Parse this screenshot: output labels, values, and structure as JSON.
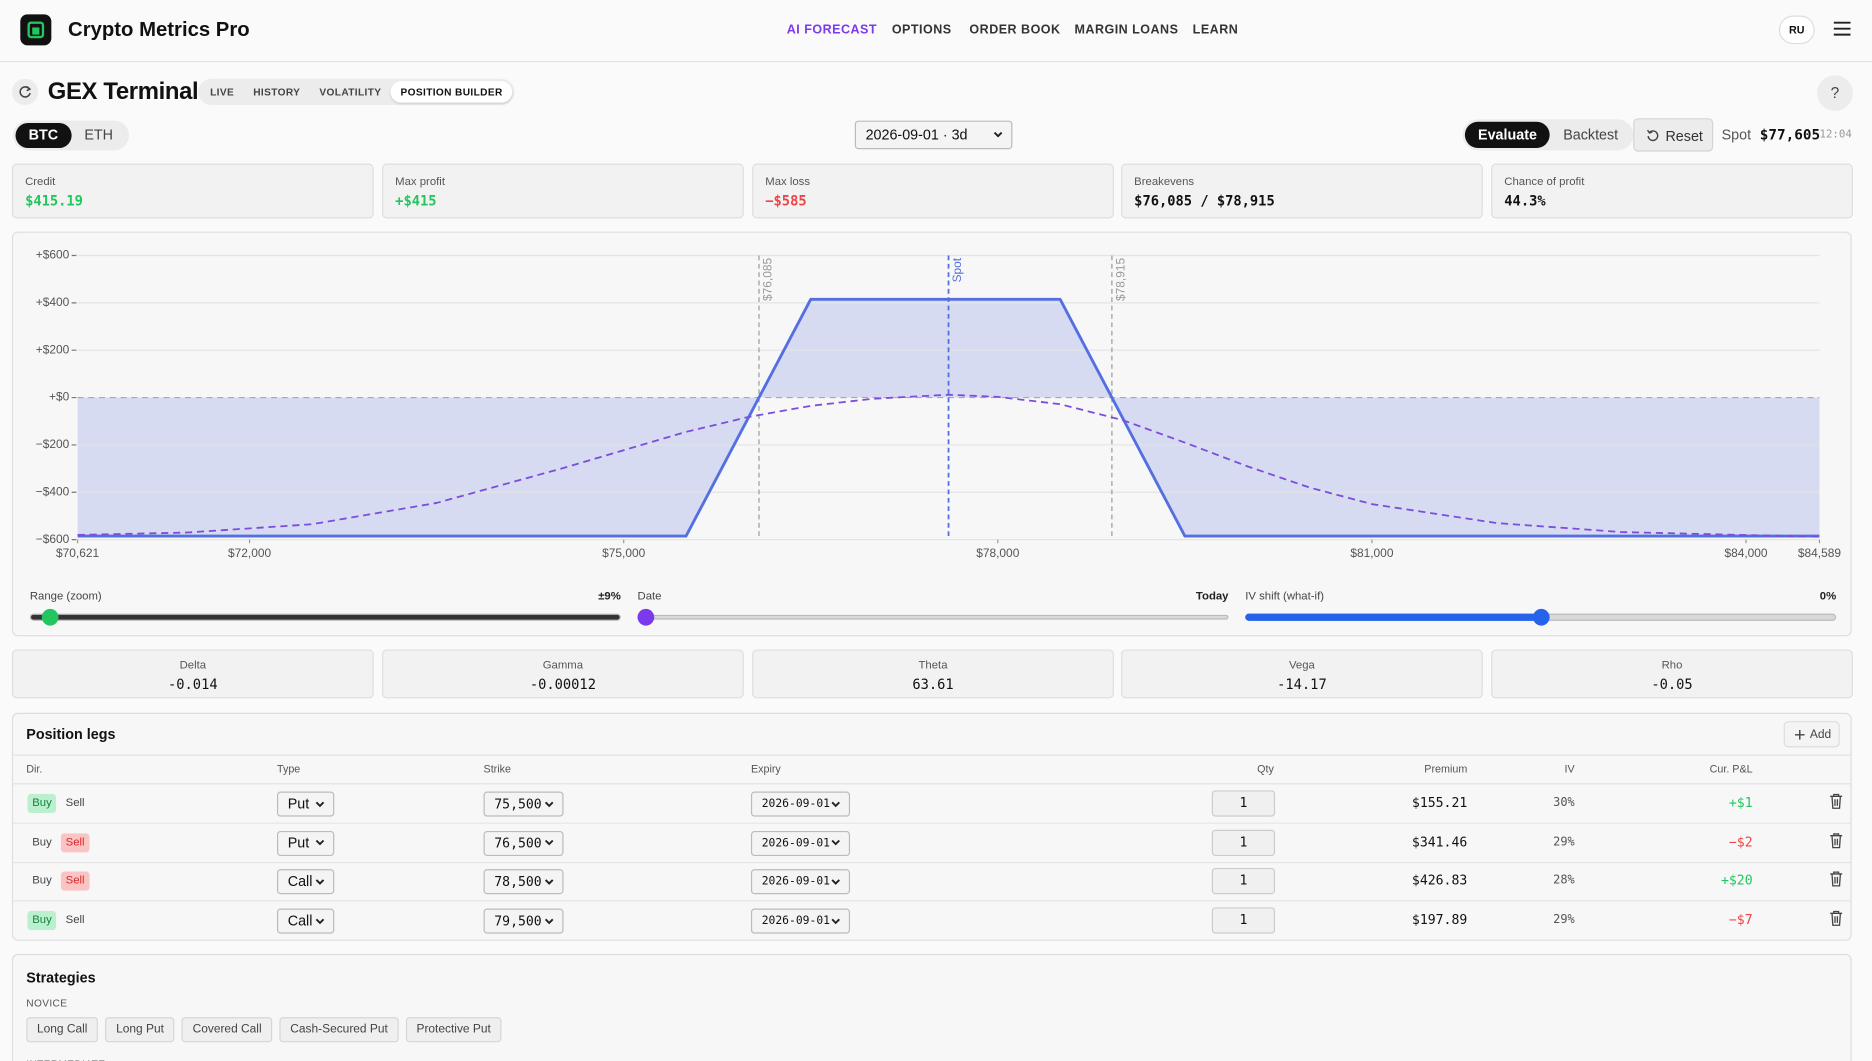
{
  "header": {
    "brand": "Crypto Metrics Pro",
    "nav": [
      "AI FORECAST",
      "OPTIONS",
      "ORDER BOOK",
      "MARGIN LOANS",
      "LEARN"
    ],
    "active_nav": 0,
    "language": "RU"
  },
  "terminal": {
    "title": "GEX Terminal",
    "tabs": [
      "LIVE",
      "HISTORY",
      "VOLATILITY",
      "POSITION BUILDER"
    ],
    "active_tab": 3,
    "help": "?"
  },
  "toolbar": {
    "assets": [
      "BTC",
      "ETH"
    ],
    "active_asset": 0,
    "expiry": "2026-09-01 · 3d",
    "modes": [
      "Evaluate",
      "Backtest"
    ],
    "active_mode": 0,
    "reset": "Reset",
    "spot_label": "Spot",
    "spot": "$77,605",
    "time": "12:04"
  },
  "summary": [
    {
      "label": "Credit",
      "value": "$415.19",
      "color": "#22c55e"
    },
    {
      "label": "Max profit",
      "value": "+$415",
      "color": "#22c55e"
    },
    {
      "label": "Max loss",
      "value": "−$585",
      "color": "#ef4444"
    },
    {
      "label": "Breakevens",
      "value": "$76,085 / $78,915",
      "color": "#111111"
    },
    {
      "label": "Chance of profit",
      "value": "44.3%",
      "color": "#111111"
    }
  ],
  "chart_data": {
    "type": "line",
    "xlim": [
      70621,
      84589
    ],
    "xticks": [
      {
        "value": 70621,
        "label": "$70,621"
      },
      {
        "value": 72000,
        "label": "$72,000"
      },
      {
        "value": 75000,
        "label": "$75,000"
      },
      {
        "value": 78000,
        "label": "$78,000"
      },
      {
        "value": 81000,
        "label": "$81,000"
      },
      {
        "value": 84000,
        "label": "$84,000"
      },
      {
        "value": 84589,
        "label": "$84,589"
      }
    ],
    "ylim": [
      -600,
      600
    ],
    "yticks": [
      {
        "value": 600,
        "label": "+$600"
      },
      {
        "value": 400,
        "label": "+$400"
      },
      {
        "value": 200,
        "label": "+$200"
      },
      {
        "value": 0,
        "label": "+$0"
      },
      {
        "value": -200,
        "label": "−$200"
      },
      {
        "value": -400,
        "label": "−$400"
      },
      {
        "value": -600,
        "label": "−$600"
      }
    ],
    "grid": true,
    "series": [
      {
        "color": "#5470e0",
        "area": true,
        "dash": false,
        "x": [
          70621,
          75500,
          76500,
          78500,
          79500,
          84589
        ],
        "values": [
          -585,
          -585,
          415,
          415,
          -585,
          -585
        ]
      },
      {
        "color": "#7c4ddb",
        "area": false,
        "dash": true,
        "x": [
          70621,
          71500,
          72500,
          73500,
          74500,
          75500,
          76000,
          76500,
          77000,
          77605,
          78000,
          78500,
          79000,
          79500,
          80000,
          80500,
          81000,
          82000,
          83000,
          84589
        ],
        "values": [
          -580,
          -570,
          -535,
          -445,
          -300,
          -145,
          -82,
          -35,
          -5,
          12,
          3,
          -28,
          -95,
          -190,
          -290,
          -380,
          -450,
          -530,
          -568,
          -588
        ]
      }
    ],
    "markers": [
      {
        "value": 76085,
        "label": "$76,085",
        "color": "#999999"
      },
      {
        "value": 77605,
        "label": "Spot",
        "color": "#5470e0"
      },
      {
        "value": 78915,
        "label": "$78,915",
        "color": "#999999"
      }
    ]
  },
  "sliders": [
    {
      "label": "Range (zoom)",
      "value_label": "±9%"
    },
    {
      "label": "Date",
      "value_label": "Today"
    },
    {
      "label": "IV shift (what-if)",
      "value_label": "0%"
    }
  ],
  "greeks": [
    {
      "label": "Delta",
      "value": "-0.014"
    },
    {
      "label": "Gamma",
      "value": "-0.00012"
    },
    {
      "label": "Theta",
      "value": "63.61"
    },
    {
      "label": "Vega",
      "value": "-14.17"
    },
    {
      "label": "Rho",
      "value": "-0.05"
    }
  ],
  "legs": {
    "title": "Position legs",
    "add": "Add",
    "columns": [
      "Dir.",
      "Type",
      "Strike",
      "Expiry",
      "Qty",
      "Premium",
      "IV",
      "Cur. P&L"
    ],
    "rows": [
      {
        "dir": [
          "Buy",
          "Sell"
        ],
        "side": 0,
        "type": "Put",
        "strike": "75,500",
        "expiry": "2026-09-01",
        "qty": "1",
        "premium": "$155.21",
        "iv": "30%",
        "pnl": "+$1",
        "pnl_color": "#22c55e"
      },
      {
        "dir": [
          "Buy",
          "Sell"
        ],
        "side": 1,
        "type": "Put",
        "strike": "76,500",
        "expiry": "2026-09-01",
        "qty": "1",
        "premium": "$341.46",
        "iv": "29%",
        "pnl": "−$2",
        "pnl_color": "#ef4444"
      },
      {
        "dir": [
          "Buy",
          "Sell"
        ],
        "side": 1,
        "type": "Call",
        "strike": "78,500",
        "expiry": "2026-09-01",
        "qty": "1",
        "premium": "$426.83",
        "iv": "28%",
        "pnl": "+$20",
        "pnl_color": "#22c55e"
      },
      {
        "dir": [
          "Buy",
          "Sell"
        ],
        "side": 0,
        "type": "Call",
        "strike": "79,500",
        "expiry": "2026-09-01",
        "qty": "1",
        "premium": "$197.89",
        "iv": "29%",
        "pnl": "−$7",
        "pnl_color": "#ef4444"
      }
    ]
  },
  "strategies": {
    "title": "Strategies",
    "groups": [
      {
        "name": "NOVICE",
        "items": [
          "Long Call",
          "Long Put",
          "Covered Call",
          "Cash-Secured Put",
          "Protective Put"
        ]
      },
      {
        "name": "INTERMEDIATE",
        "items": []
      }
    ]
  }
}
